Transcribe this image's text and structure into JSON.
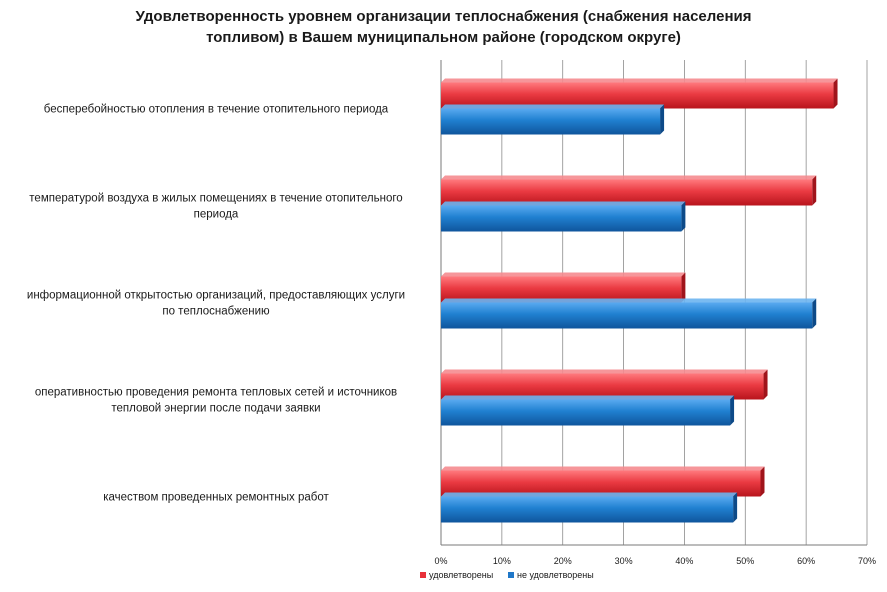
{
  "chart_data": {
    "type": "bar",
    "orientation": "horizontal",
    "title_lines": [
      "Удовлетворенность уровнем организации теплоснабжения (снабжения населения",
      "топливом) в Вашем муниципальном районе (городском округе)"
    ],
    "categories": [
      [
        "бесперебойностью  отопления  в течение отопительного  периода"
      ],
      [
        "температурой  воздуха в жилых помещениях в течение отопительного",
        "периода"
      ],
      [
        "информационной открытостью организаций, предоставляющих услуги",
        "по теплоснабжению"
      ],
      [
        "оперативностью проведения ремонта тепловых сетей и источников",
        "тепловой энергии после подачи заявки"
      ],
      [
        "качеством проведенных ремонтных  работ"
      ]
    ],
    "series": [
      {
        "name": "удовлетворены",
        "color": "#e8313a",
        "values": [
          64.5,
          61,
          39.5,
          53,
          52.5
        ]
      },
      {
        "name": "не удовлетворены",
        "color": "#1f77c8",
        "values": [
          36,
          39.5,
          61,
          47.5,
          48
        ]
      }
    ],
    "xlim": [
      0,
      70
    ],
    "x_ticks": [
      "0%",
      "10%",
      "20%",
      "30%",
      "40%",
      "50%",
      "60%",
      "70%"
    ],
    "grid": true,
    "legend_position": "bottom"
  }
}
